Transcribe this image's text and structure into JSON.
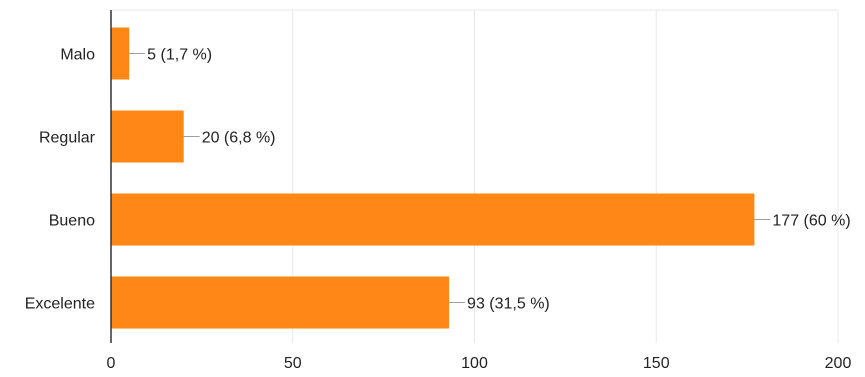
{
  "chart_data": {
    "type": "bar",
    "orientation": "horizontal",
    "categories": [
      "Malo",
      "Regular",
      "Bueno",
      "Excelente"
    ],
    "values": [
      5,
      20,
      177,
      93
    ],
    "data_labels": [
      "5 (1,7 %)",
      "20 (6,8 %)",
      "177 (60 %)",
      "93 (31,5 %)"
    ],
    "xlim": [
      0,
      200
    ],
    "x_ticks": [
      0,
      50,
      100,
      150,
      200
    ],
    "x_tick_labels": [
      "0",
      "50",
      "100",
      "150",
      "200"
    ],
    "title": "",
    "xlabel": "",
    "ylabel": "",
    "grid": true,
    "legend": "none",
    "colors": {
      "bar": "#FF8716",
      "grid": "#e8e8e8",
      "axis": "#333333",
      "leader": "#9e9e9e"
    }
  }
}
